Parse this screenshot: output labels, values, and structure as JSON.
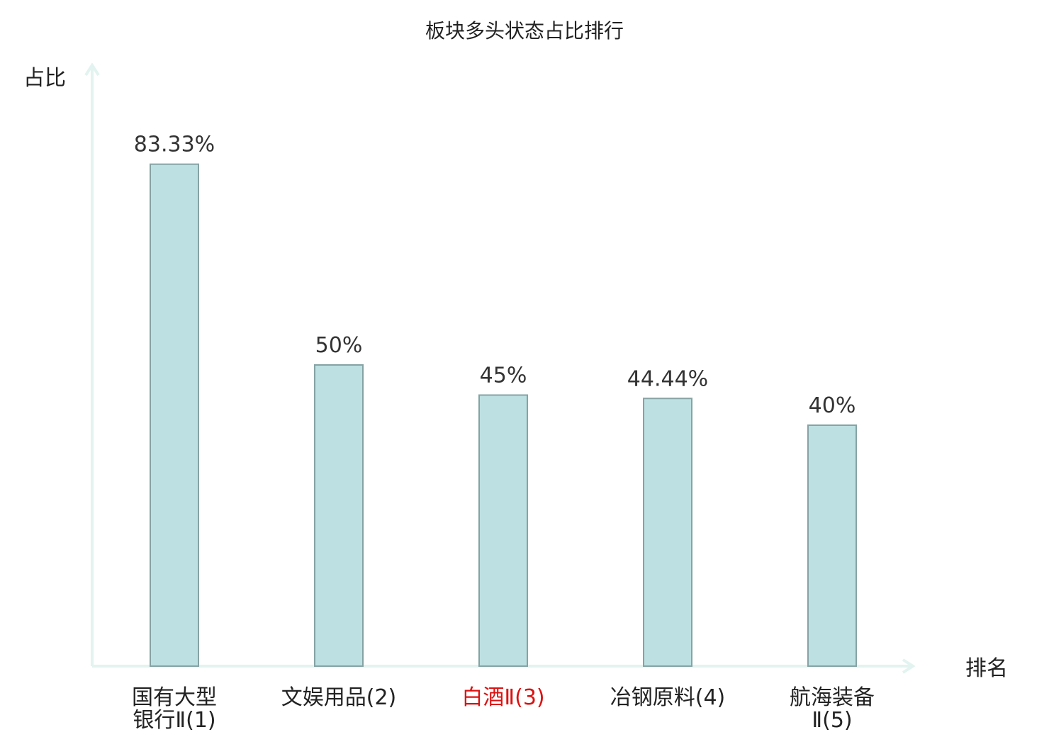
{
  "chart_data": {
    "type": "bar",
    "title": "板块多头状态占比排行",
    "ylabel": "占比",
    "xlabel": "排名",
    "categories": [
      [
        "国有大型",
        "银行Ⅱ(1)"
      ],
      [
        "文娱用品(2)"
      ],
      [
        "白酒Ⅱ(3)"
      ],
      [
        "冶钢原料(4)"
      ],
      [
        "航海装备",
        "Ⅱ(5)"
      ]
    ],
    "values": [
      83.33,
      50,
      45,
      44.44,
      40
    ],
    "value_labels": [
      "83.33%",
      "50%",
      "45%",
      "44.44%",
      "40%"
    ],
    "highlight_index": 2,
    "ylim": [
      0,
      100
    ],
    "grid": false,
    "legend": "none"
  },
  "colors": {
    "bar_fill": "#bde0e2",
    "bar_stroke": "#86a3a4",
    "axis": "#e2f3f0",
    "text": "#222222",
    "value_text": "#333333",
    "highlight": "#dd1111"
  }
}
